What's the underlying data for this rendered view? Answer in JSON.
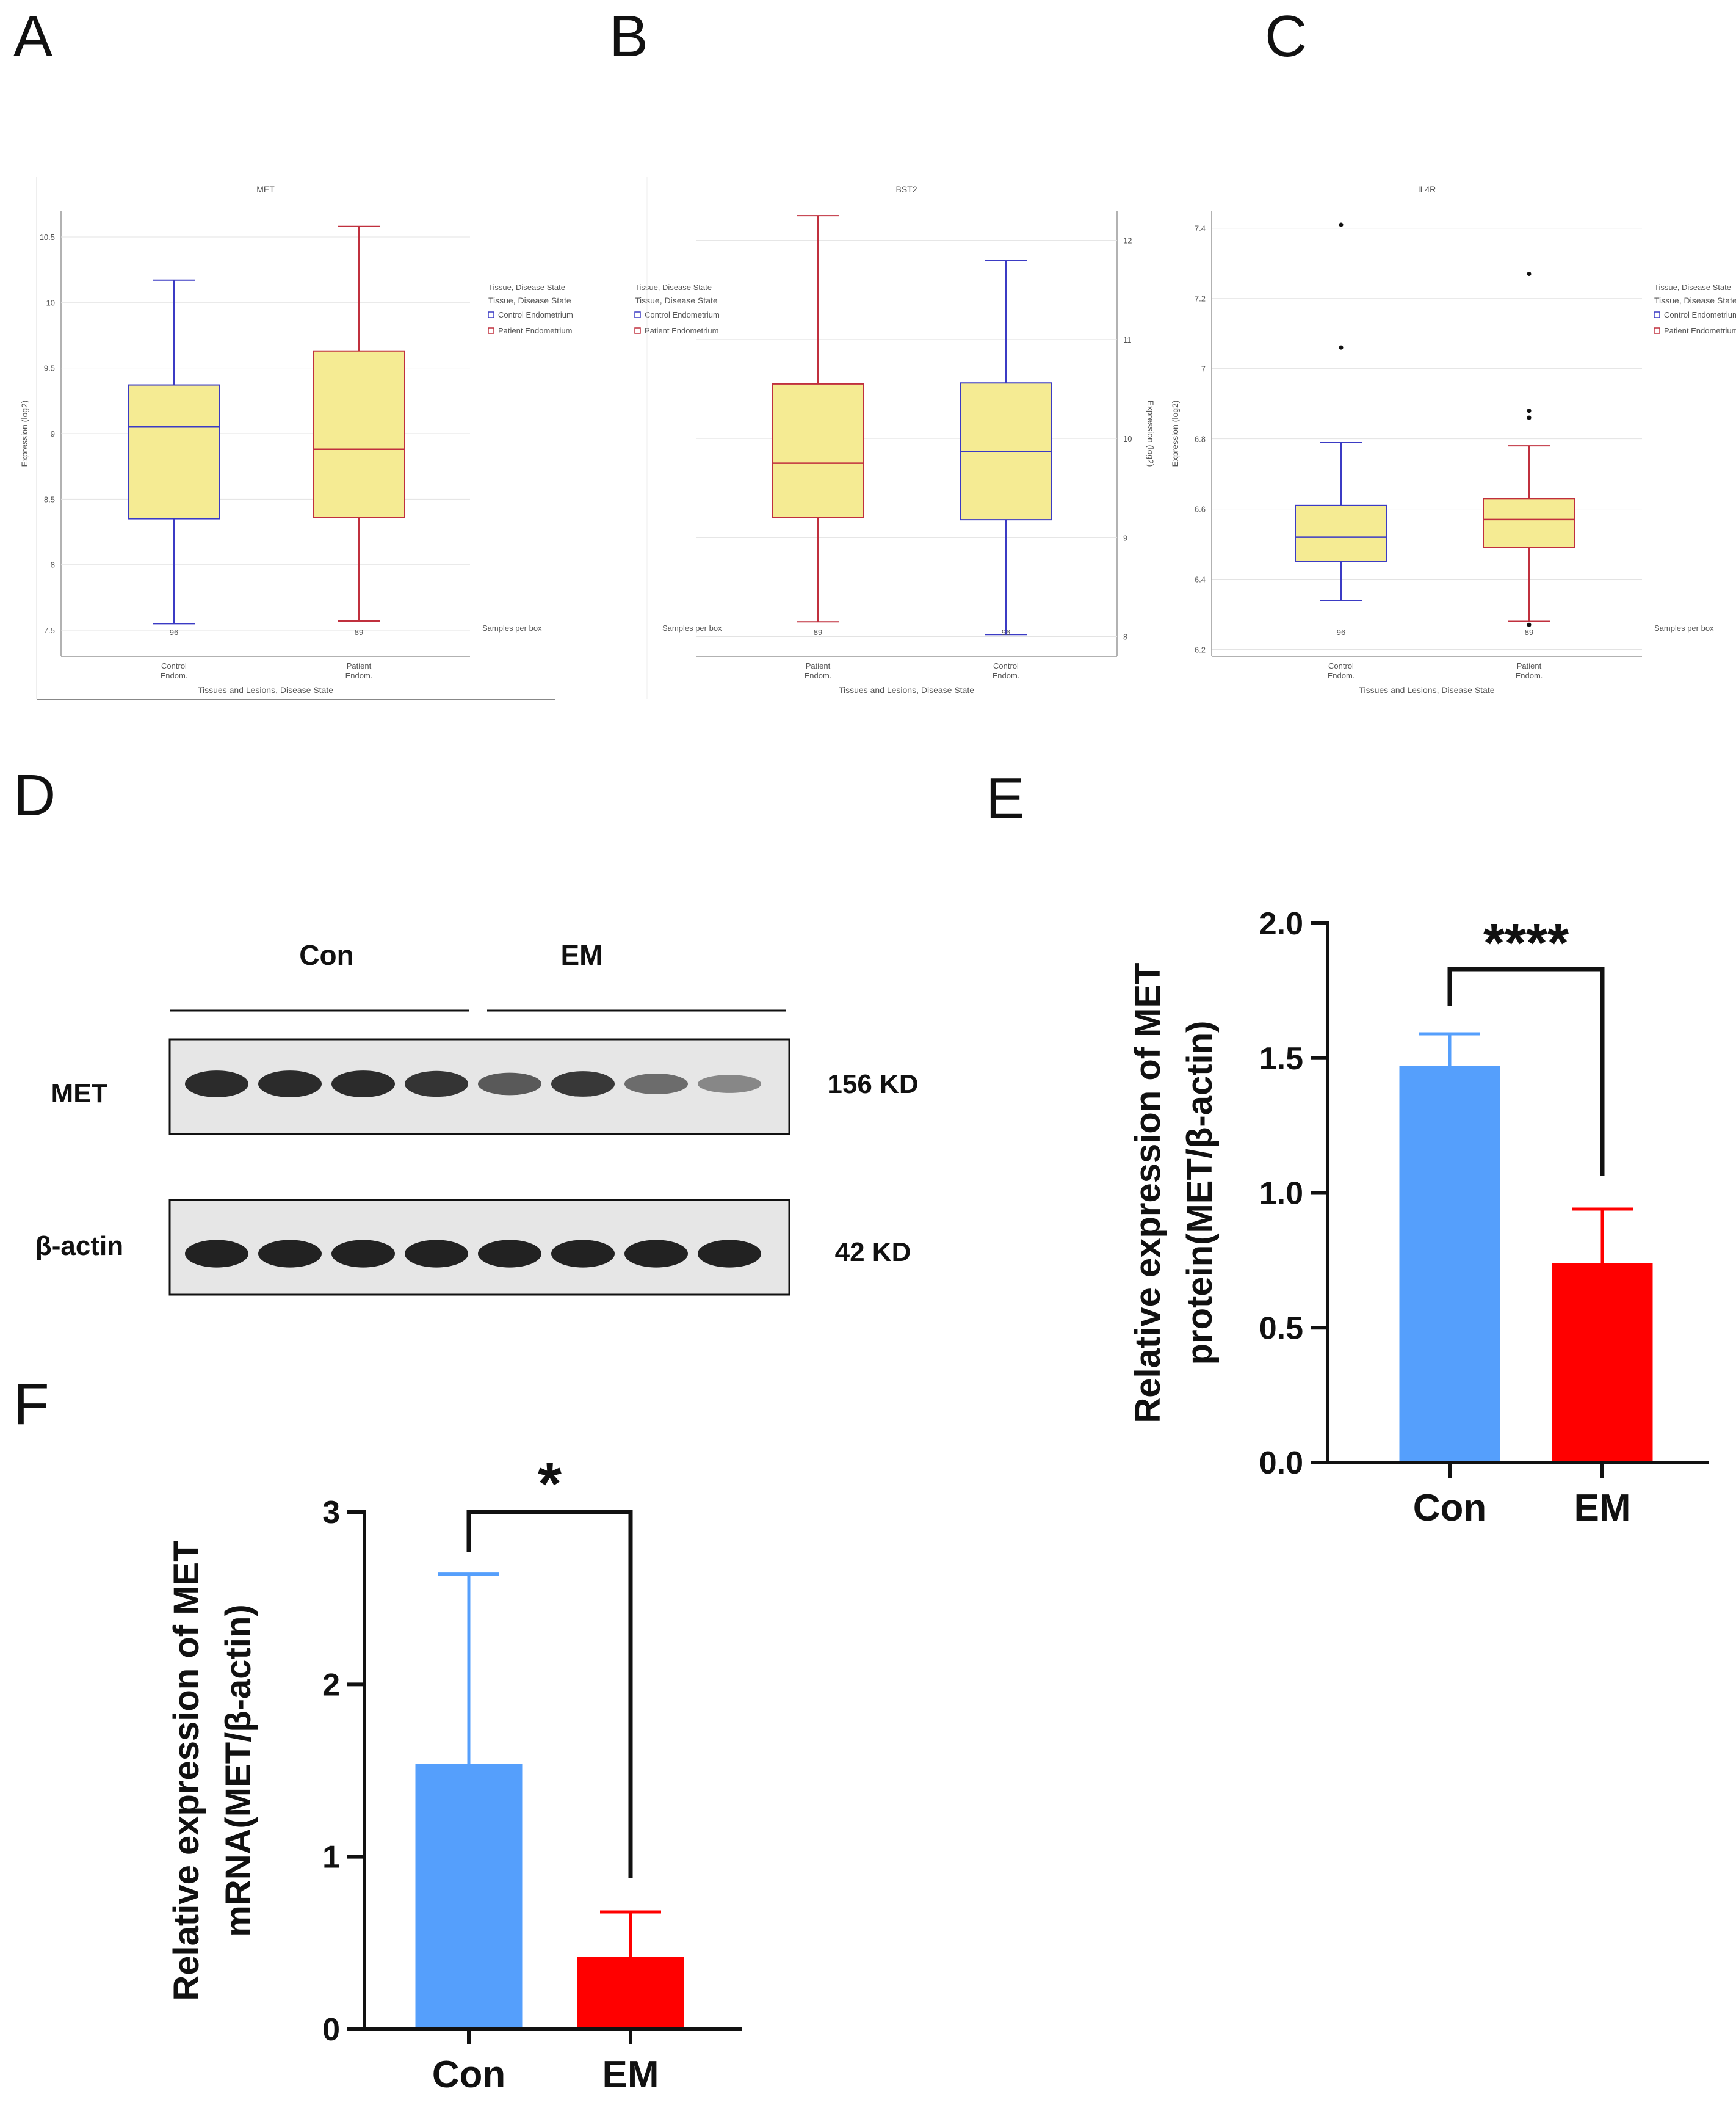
{
  "panel_labels": [
    "A",
    "B",
    "C",
    "D",
    "E",
    "F"
  ],
  "colors": {
    "box_fill": "#f5eb93",
    "control": "#3b3bc4",
    "patient": "#c0303e",
    "con_bar": "#559ffc",
    "em_bar": "#ff0000"
  },
  "chart_data": [
    {
      "id": "A",
      "type": "box",
      "title": "MET",
      "ylabel": "Expression (log2)",
      "xlabel": "Tissues and Lesions, Disease State",
      "ylim": [
        7.3,
        10.7
      ],
      "yticks": [
        "7.5",
        "8",
        "8.5",
        "9",
        "9.5",
        "10",
        "10.5"
      ],
      "categories": [
        "Control Endom.",
        "Patient Endom."
      ],
      "samples": [
        "96",
        "89"
      ],
      "boxes": [
        {
          "name": "Control Endometrium",
          "min": 7.55,
          "q1": 8.35,
          "median": 9.05,
          "q3": 9.37,
          "max": 10.17,
          "outliers": []
        },
        {
          "name": "Patient Endometrium",
          "min": 7.57,
          "q1": 8.36,
          "median": 8.88,
          "q3": 9.63,
          "max": 10.58,
          "outliers": []
        }
      ],
      "legend_title": "Tissue, Disease State",
      "legend_subtitle": "Tissue, Disease State",
      "legend_items": [
        "Control Endometrium",
        "Patient Endometrium"
      ],
      "samples_label": "Samples per box"
    },
    {
      "id": "B",
      "type": "box",
      "title": "BST2",
      "mirrored": true,
      "ylabel": "Expression (log2)",
      "xlabel": "Tissues and Lesions, Disease State",
      "ylim": [
        7.8,
        12.3
      ],
      "yticks": [
        "8",
        "9",
        "10",
        "11",
        "12"
      ],
      "categories": [
        "Patient Endom.",
        "Control Endom."
      ],
      "samples": [
        "89",
        "96"
      ],
      "boxes": [
        {
          "name": "Patient Endometrium",
          "min": 8.15,
          "q1": 9.2,
          "median": 9.75,
          "q3": 10.55,
          "max": 12.25,
          "outliers": []
        },
        {
          "name": "Control Endometrium",
          "min": 8.02,
          "q1": 9.18,
          "median": 9.87,
          "q3": 10.56,
          "max": 11.8,
          "outliers": []
        }
      ],
      "legend_title": "Tissue, Disease State",
      "legend_subtitle": "Tissue, Disease State",
      "legend_items": [
        "Control Endometrium",
        "Patient Endometrium"
      ],
      "samples_label": "Samples per box"
    },
    {
      "id": "C",
      "type": "box",
      "title": "IL4R",
      "ylabel": "Expression (log2)",
      "xlabel": "Tissues and Lesions, Disease State",
      "ylim": [
        6.18,
        7.45
      ],
      "yticks": [
        "6.2",
        "6.4",
        "6.6",
        "6.8",
        "7",
        "7.2",
        "7.4"
      ],
      "categories": [
        "Control Endom.",
        "Patient Endom."
      ],
      "samples": [
        "96",
        "89"
      ],
      "boxes": [
        {
          "name": "Control Endometrium",
          "min": 6.34,
          "q1": 6.45,
          "median": 6.52,
          "q3": 6.61,
          "max": 6.79,
          "outliers": [
            7.41,
            7.06
          ]
        },
        {
          "name": "Patient Endometrium",
          "min": 6.28,
          "q1": 6.49,
          "median": 6.57,
          "q3": 6.63,
          "max": 6.78,
          "outliers": [
            7.27,
            6.88,
            6.86,
            6.27
          ]
        }
      ],
      "legend_title": "Tissue, Disease State",
      "legend_subtitle": "Tissue, Disease State",
      "legend_items": [
        "Control Endometrium",
        "Patient Endometrium"
      ],
      "samples_label": "Samples per box"
    },
    {
      "id": "E",
      "type": "bar",
      "title": "",
      "ylabel_line1": "Relative expression of MET",
      "ylabel_line2": "protein(MET/β-actin)",
      "categories": [
        "Con",
        "EM"
      ],
      "values": [
        1.47,
        0.74
      ],
      "errors": [
        0.12,
        0.2
      ],
      "ylim": [
        0,
        2.0
      ],
      "yticks": [
        "0.0",
        "0.5",
        "1.0",
        "1.5",
        "2.0"
      ],
      "significance": "****"
    },
    {
      "id": "F",
      "type": "bar",
      "title": "",
      "ylabel_line1": "Relative expression of MET",
      "ylabel_line2": "mRNA(MET/β-actin)",
      "categories": [
        "Con",
        "EM"
      ],
      "values": [
        1.54,
        0.42
      ],
      "errors": [
        1.1,
        0.26
      ],
      "ylim": [
        0,
        3
      ],
      "yticks": [
        "0",
        "1",
        "2",
        "3"
      ],
      "significance": "*"
    }
  ],
  "western_blot": {
    "groups": [
      "Con",
      "EM"
    ],
    "rows": [
      {
        "protein": "MET",
        "size": "156 KD",
        "intensities": [
          0.85,
          0.85,
          0.85,
          0.8,
          0.6,
          0.78,
          0.5,
          0.35
        ]
      },
      {
        "protein": "β-actin",
        "size": "42 KD",
        "intensities": [
          0.9,
          0.9,
          0.9,
          0.9,
          0.9,
          0.9,
          0.9,
          0.9
        ]
      }
    ]
  }
}
